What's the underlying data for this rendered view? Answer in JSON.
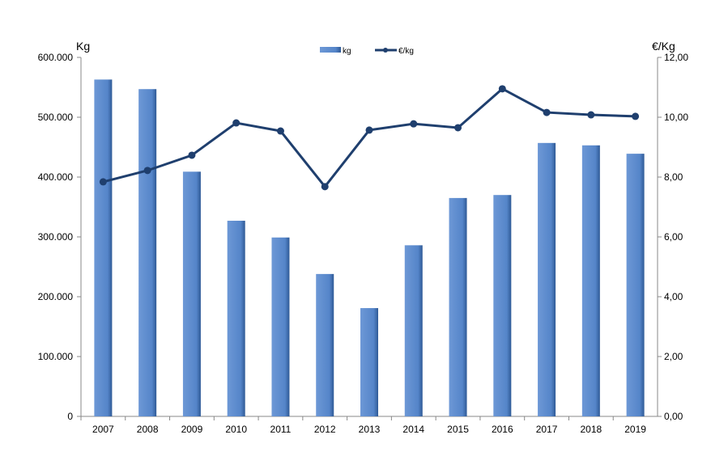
{
  "chart_data": {
    "type": "bar+line",
    "title": "",
    "categories": [
      "2007",
      "2008",
      "2009",
      "2010",
      "2011",
      "2012",
      "2013",
      "2014",
      "2015",
      "2016",
      "2017",
      "2018",
      "2019"
    ],
    "series": [
      {
        "name": "kg",
        "type": "bar",
        "axis": "left",
        "color": "#5585C9",
        "values": [
          563000,
          547000,
          409000,
          327000,
          299000,
          238000,
          181000,
          286000,
          365000,
          370000,
          457000,
          453000,
          439000
        ]
      },
      {
        "name": "€/kg",
        "type": "line",
        "axis": "right",
        "color": "#1F3F6E",
        "values": [
          7.84,
          8.22,
          8.73,
          9.81,
          9.54,
          7.68,
          9.57,
          9.78,
          9.65,
          10.95,
          10.16,
          10.08,
          10.03
        ]
      }
    ],
    "ylabel": "Kg",
    "y2label": "€/Kg",
    "ylim": [
      0,
      600000
    ],
    "y2lim": [
      0,
      12
    ],
    "yticks": [
      "0",
      "100.000",
      "200.000",
      "300.000",
      "400.000",
      "500.000",
      "600.000"
    ],
    "y2ticks": [
      "0,00",
      "2,00",
      "4,00",
      "6,00",
      "8,00",
      "10,00",
      "12,00"
    ],
    "grid": false,
    "legend": "top-center"
  }
}
